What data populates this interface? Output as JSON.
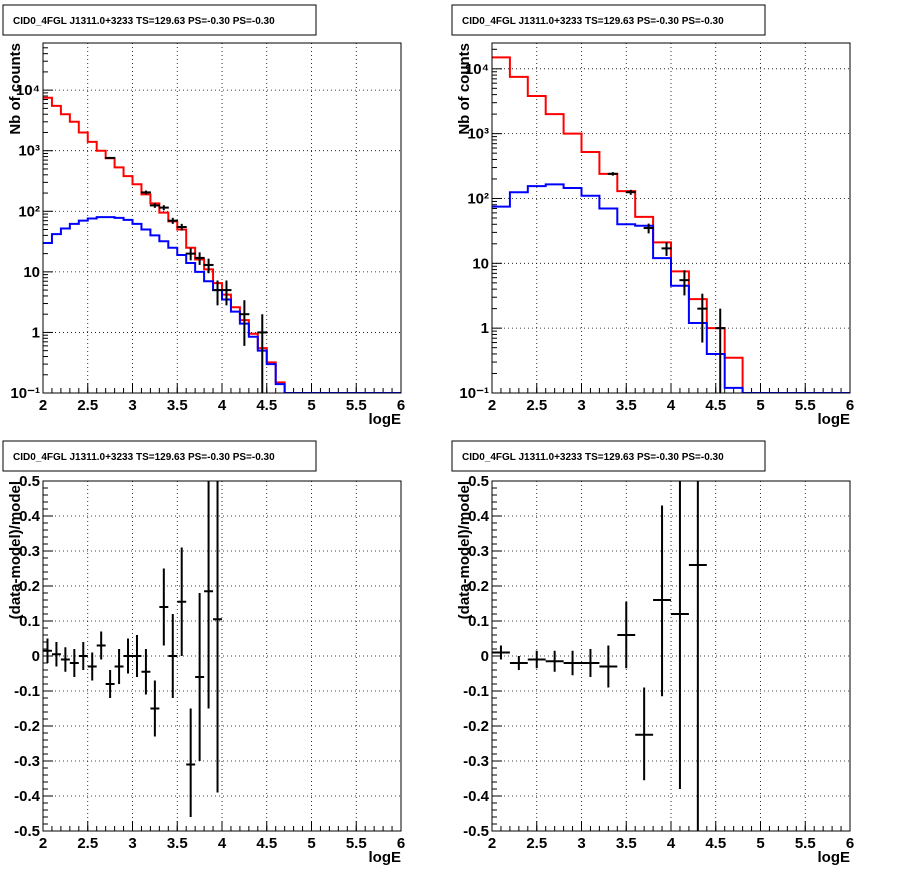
{
  "chart_data": [
    {
      "type": "histogram",
      "title": "CID0_4FGL J1311.0+3233 TS=129.63 PS=-0.30 PS=-0.30",
      "xlabel": "logE",
      "ylabel": "Nb of counts",
      "xlim": [
        2,
        6
      ],
      "ylim": [
        0.1,
        60000
      ],
      "log_y": true,
      "grid": true,
      "x_ticks": [
        "2",
        "2.5",
        "3",
        "3.5",
        "4",
        "4.5",
        "5",
        "5.5",
        "6"
      ],
      "y_ticks": [
        {
          "v": 0.1,
          "label": "10⁻¹"
        },
        {
          "v": 1,
          "label": "1"
        },
        {
          "v": 10,
          "label": "10"
        },
        {
          "v": 100,
          "label": "10²"
        },
        {
          "v": 1000,
          "label": "10³"
        },
        {
          "v": 10000,
          "label": "10⁴"
        }
      ],
      "series": [
        {
          "kind": "step",
          "color": "#ff0000",
          "x_edges": [
            2.0,
            2.1,
            2.2,
            2.3,
            2.4,
            2.5,
            2.6,
            2.7,
            2.8,
            2.9,
            3.0,
            3.1,
            3.2,
            3.3,
            3.4,
            3.5,
            3.6,
            3.7,
            3.8,
            3.9,
            4.0,
            4.1,
            4.2,
            4.3,
            4.4,
            4.5,
            4.6,
            4.7,
            4.8,
            4.9,
            5.0,
            5.1,
            5.2,
            5.3,
            5.4,
            5.5,
            5.6,
            5.7,
            5.8,
            5.9,
            6.0
          ],
          "values": [
            7500,
            5500,
            4000,
            3000,
            2000,
            1400,
            1000,
            750,
            530,
            380,
            280,
            190,
            135,
            95,
            68,
            50,
            25,
            16,
            11,
            6.5,
            4.2,
            2.6,
            1.6,
            0.95,
            0.55,
            0.32,
            0.15,
            0.1,
            0.1,
            0.1,
            0.1,
            0.1,
            0.1,
            0.1,
            0.1,
            0.1,
            0.1,
            0.1,
            0.1,
            0.1
          ]
        },
        {
          "kind": "step",
          "color": "#0000ff",
          "x_edges": [
            2.0,
            2.1,
            2.2,
            2.3,
            2.4,
            2.5,
            2.6,
            2.7,
            2.8,
            2.9,
            3.0,
            3.1,
            3.2,
            3.3,
            3.4,
            3.5,
            3.6,
            3.7,
            3.8,
            3.9,
            4.0,
            4.1,
            4.2,
            4.3,
            4.4,
            4.5,
            4.6,
            4.7,
            4.8,
            4.9,
            5.0,
            5.1,
            5.2,
            5.3,
            5.4,
            5.5,
            5.6,
            5.7,
            5.8,
            5.9,
            6.0
          ],
          "values": [
            30,
            42,
            52,
            62,
            70,
            76,
            80,
            80,
            78,
            72,
            62,
            50,
            40,
            32,
            25,
            19,
            14,
            10,
            7,
            5,
            3.5,
            2.2,
            1.4,
            0.85,
            0.5,
            0.3,
            0.14,
            0.1,
            0.1,
            0.1,
            0.1,
            0.1,
            0.1,
            0.1,
            0.1,
            0.1,
            0.1,
            0.1,
            0.1,
            0.1
          ]
        },
        {
          "kind": "points",
          "color": "#000000",
          "points": [
            {
              "x": 2.75,
              "y": 760,
              "ylo": 730,
              "yhi": 790
            },
            {
              "x": 3.15,
              "y": 205,
              "ylo": 190,
              "yhi": 220
            },
            {
              "x": 3.25,
              "y": 125,
              "ylo": 114,
              "yhi": 136
            },
            {
              "x": 3.35,
              "y": 115,
              "ylo": 104,
              "yhi": 126
            },
            {
              "x": 3.45,
              "y": 70,
              "ylo": 62,
              "yhi": 78
            },
            {
              "x": 3.55,
              "y": 55,
              "ylo": 48,
              "yhi": 62
            },
            {
              "x": 3.65,
              "y": 20,
              "ylo": 15.5,
              "yhi": 24.5
            },
            {
              "x": 3.75,
              "y": 17,
              "ylo": 13,
              "yhi": 21
            },
            {
              "x": 3.85,
              "y": 13,
              "ylo": 9.5,
              "yhi": 16.5
            },
            {
              "x": 3.95,
              "y": 5,
              "ylo": 2.8,
              "yhi": 7.2
            },
            {
              "x": 4.05,
              "y": 5,
              "ylo": 2.8,
              "yhi": 7.2
            },
            {
              "x": 4.25,
              "y": 2,
              "ylo": 0.6,
              "yhi": 3.4
            },
            {
              "x": 4.45,
              "y": 1,
              "ylo": 0.1,
              "yhi": 2
            }
          ]
        }
      ]
    },
    {
      "type": "histogram",
      "title": "CID0_4FGL J1311.0+3233 TS=129.63 PS=-0.30 PS=-0.30",
      "xlabel": "logE",
      "ylabel": "Nb of counts",
      "xlim": [
        2,
        6
      ],
      "ylim": [
        0.1,
        25000
      ],
      "log_y": true,
      "grid": true,
      "x_ticks": [
        "2",
        "2.5",
        "3",
        "3.5",
        "4",
        "4.5",
        "5",
        "5.5",
        "6"
      ],
      "y_ticks": [
        {
          "v": 0.1,
          "label": "10⁻¹"
        },
        {
          "v": 1,
          "label": "1"
        },
        {
          "v": 10,
          "label": "10"
        },
        {
          "v": 100,
          "label": "10²"
        },
        {
          "v": 1000,
          "label": "10³"
        },
        {
          "v": 10000,
          "label": "10⁴"
        }
      ],
      "series": [
        {
          "kind": "step",
          "color": "#ff0000",
          "x_edges": [
            2.0,
            2.2,
            2.4,
            2.6,
            2.8,
            3.0,
            3.2,
            3.4,
            3.6,
            3.8,
            4.0,
            4.2,
            4.4,
            4.6,
            4.8,
            5.0,
            5.2,
            5.4,
            5.6,
            5.8,
            6.0
          ],
          "values": [
            15000,
            7500,
            3800,
            2000,
            1000,
            520,
            240,
            130,
            52,
            21,
            7.5,
            2.8,
            1.0,
            0.35,
            0.1,
            0.1,
            0.1,
            0.1,
            0.1,
            0.1
          ]
        },
        {
          "kind": "step",
          "color": "#0000ff",
          "x_edges": [
            2.0,
            2.2,
            2.4,
            2.6,
            2.8,
            3.0,
            3.2,
            3.4,
            3.6,
            3.8,
            4.0,
            4.2,
            4.4,
            4.6,
            4.8,
            5.0,
            5.2,
            5.4,
            5.6,
            5.8,
            6.0
          ],
          "values": [
            75,
            125,
            155,
            165,
            145,
            110,
            70,
            40,
            38,
            12,
            4.5,
            1.2,
            0.4,
            0.12,
            0.1,
            0.1,
            0.1,
            0.1,
            0.1,
            0.1
          ]
        },
        {
          "kind": "points",
          "color": "#000000",
          "points": [
            {
              "x": 3.35,
              "y": 240,
              "ylo": 225,
              "yhi": 255
            },
            {
              "x": 3.55,
              "y": 125,
              "ylo": 114,
              "yhi": 136
            },
            {
              "x": 3.75,
              "y": 35,
              "ylo": 29,
              "yhi": 41
            },
            {
              "x": 3.95,
              "y": 17,
              "ylo": 13,
              "yhi": 21
            },
            {
              "x": 4.15,
              "y": 5.5,
              "ylo": 3.2,
              "yhi": 7.8
            },
            {
              "x": 4.35,
              "y": 2,
              "ylo": 0.6,
              "yhi": 3.4
            },
            {
              "x": 4.55,
              "y": 1,
              "ylo": 0.1,
              "yhi": 2
            }
          ]
        }
      ]
    },
    {
      "type": "scatter",
      "title": "CID0_4FGL J1311.0+3233 TS=129.63 PS=-0.30 PS=-0.30",
      "xlabel": "logE",
      "ylabel": "(data-model)/model",
      "xlim": [
        2,
        6
      ],
      "ylim": [
        -0.5,
        0.5
      ],
      "grid": true,
      "x_ticks": [
        "2",
        "2.5",
        "3",
        "3.5",
        "4",
        "4.5",
        "5",
        "5.5",
        "6"
      ],
      "y_ticks": [
        "-0.5",
        "-0.4",
        "-0.3",
        "-0.2",
        "-0.1",
        "0",
        "0.1",
        "0.2",
        "0.3",
        "0.4",
        "0.5"
      ],
      "points": [
        {
          "x": 2.05,
          "y": 0.015,
          "xerr": 0.05,
          "ylo": -0.02,
          "yhi": 0.05
        },
        {
          "x": 2.15,
          "y": 0.005,
          "xerr": 0.05,
          "ylo": -0.03,
          "yhi": 0.04
        },
        {
          "x": 2.25,
          "y": -0.01,
          "xerr": 0.05,
          "ylo": -0.045,
          "yhi": 0.025
        },
        {
          "x": 2.35,
          "y": -0.02,
          "xerr": 0.05,
          "ylo": -0.06,
          "yhi": 0.02
        },
        {
          "x": 2.45,
          "y": 0.0,
          "xerr": 0.05,
          "ylo": -0.04,
          "yhi": 0.04
        },
        {
          "x": 2.55,
          "y": -0.03,
          "xerr": 0.05,
          "ylo": -0.07,
          "yhi": 0.01
        },
        {
          "x": 2.65,
          "y": 0.03,
          "xerr": 0.05,
          "ylo": -0.01,
          "yhi": 0.07
        },
        {
          "x": 2.75,
          "y": -0.08,
          "xerr": 0.05,
          "ylo": -0.12,
          "yhi": -0.04
        },
        {
          "x": 2.85,
          "y": -0.03,
          "xerr": 0.05,
          "ylo": -0.08,
          "yhi": 0.02
        },
        {
          "x": 2.95,
          "y": 0.0,
          "xerr": 0.05,
          "ylo": -0.05,
          "yhi": 0.05
        },
        {
          "x": 3.05,
          "y": 0.0,
          "xerr": 0.05,
          "ylo": -0.06,
          "yhi": 0.06
        },
        {
          "x": 3.15,
          "y": -0.045,
          "xerr": 0.05,
          "ylo": -0.11,
          "yhi": 0.02
        },
        {
          "x": 3.25,
          "y": -0.15,
          "xerr": 0.05,
          "ylo": -0.23,
          "yhi": -0.07
        },
        {
          "x": 3.35,
          "y": 0.14,
          "xerr": 0.05,
          "ylo": 0.03,
          "yhi": 0.25
        },
        {
          "x": 3.45,
          "y": 0.0,
          "xerr": 0.05,
          "ylo": -0.12,
          "yhi": 0.12
        },
        {
          "x": 3.55,
          "y": 0.155,
          "xerr": 0.05,
          "ylo": 0.0,
          "yhi": 0.31
        },
        {
          "x": 3.65,
          "y": -0.31,
          "xerr": 0.05,
          "ylo": -0.46,
          "yhi": -0.15
        },
        {
          "x": 3.75,
          "y": -0.06,
          "xerr": 0.05,
          "ylo": -0.3,
          "yhi": 0.18
        },
        {
          "x": 3.85,
          "y": 0.185,
          "xerr": 0.05,
          "ylo": -0.15,
          "yhi": 0.52
        },
        {
          "x": 3.95,
          "y": 0.105,
          "xerr": 0.05,
          "ylo": -0.39,
          "yhi": 0.6
        }
      ]
    },
    {
      "type": "scatter",
      "title": "CID0_4FGL J1311.0+3233 TS=129.63 PS=-0.30 PS=-0.30",
      "xlabel": "logE",
      "ylabel": "(data-model)/model",
      "xlim": [
        2,
        6
      ],
      "ylim": [
        -0.5,
        0.5
      ],
      "grid": true,
      "x_ticks": [
        "2",
        "2.5",
        "3",
        "3.5",
        "4",
        "4.5",
        "5",
        "5.5",
        "6"
      ],
      "y_ticks": [
        "-0.5",
        "-0.4",
        "-0.3",
        "-0.2",
        "-0.1",
        "0",
        "0.1",
        "0.2",
        "0.3",
        "0.4",
        "0.5"
      ],
      "points": [
        {
          "x": 2.1,
          "y": 0.01,
          "xerr": 0.1,
          "ylo": -0.01,
          "yhi": 0.03
        },
        {
          "x": 2.3,
          "y": -0.02,
          "xerr": 0.1,
          "ylo": -0.04,
          "yhi": 0.0
        },
        {
          "x": 2.5,
          "y": -0.01,
          "xerr": 0.1,
          "ylo": -0.035,
          "yhi": 0.015
        },
        {
          "x": 2.7,
          "y": -0.015,
          "xerr": 0.1,
          "ylo": -0.045,
          "yhi": 0.015
        },
        {
          "x": 2.9,
          "y": -0.02,
          "xerr": 0.1,
          "ylo": -0.055,
          "yhi": 0.015
        },
        {
          "x": 3.1,
          "y": -0.02,
          "xerr": 0.1,
          "ylo": -0.06,
          "yhi": 0.02
        },
        {
          "x": 3.3,
          "y": -0.03,
          "xerr": 0.1,
          "ylo": -0.09,
          "yhi": 0.03
        },
        {
          "x": 3.5,
          "y": 0.06,
          "xerr": 0.1,
          "ylo": -0.035,
          "yhi": 0.155
        },
        {
          "x": 3.7,
          "y": -0.225,
          "xerr": 0.1,
          "ylo": -0.355,
          "yhi": -0.09
        },
        {
          "x": 3.9,
          "y": 0.16,
          "xerr": 0.1,
          "ylo": -0.115,
          "yhi": 0.43
        },
        {
          "x": 4.1,
          "y": 0.12,
          "xerr": 0.1,
          "ylo": -0.38,
          "yhi": 0.6
        },
        {
          "x": 4.3,
          "y": 0.26,
          "xerr": 0.1,
          "ylo": -0.6,
          "yhi": 0.6
        }
      ]
    }
  ]
}
